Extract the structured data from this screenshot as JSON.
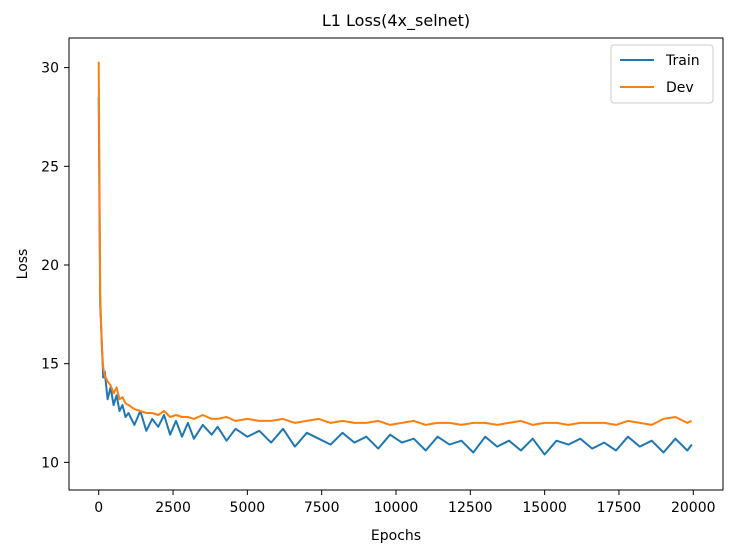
{
  "chart_data": {
    "type": "line",
    "title": "L1 Loss(4x_selnet)",
    "xlabel": "Epochs",
    "ylabel": "Loss",
    "xlim": [
      -1000,
      21000
    ],
    "ylim": [
      8.6,
      31.5
    ],
    "xticks": [
      0,
      2500,
      5000,
      7500,
      10000,
      12500,
      15000,
      17500,
      20000
    ],
    "yticks": [
      10,
      15,
      20,
      25,
      30
    ],
    "grid": false,
    "legend_position": "top-right",
    "series": [
      {
        "name": "Train",
        "color": "#1f77b4",
        "x": [
          0,
          50,
          100,
          150,
          200,
          300,
          400,
          500,
          600,
          700,
          800,
          900,
          1000,
          1200,
          1400,
          1600,
          1800,
          2000,
          2200,
          2400,
          2600,
          2800,
          3000,
          3200,
          3500,
          3800,
          4000,
          4300,
          4600,
          5000,
          5400,
          5800,
          6200,
          6600,
          7000,
          7400,
          7800,
          8200,
          8600,
          9000,
          9400,
          9800,
          10200,
          10600,
          11000,
          11400,
          11800,
          12200,
          12600,
          13000,
          13400,
          13800,
          14200,
          14600,
          15000,
          15400,
          15800,
          16200,
          16600,
          17000,
          17400,
          17800,
          18200,
          18600,
          19000,
          19400,
          19800,
          19950
        ],
        "y": [
          28.5,
          18.0,
          16.2,
          14.3,
          14.6,
          13.2,
          13.8,
          12.9,
          13.4,
          12.6,
          12.9,
          12.3,
          12.5,
          11.9,
          12.6,
          11.6,
          12.2,
          11.8,
          12.4,
          11.4,
          12.1,
          11.3,
          12.0,
          11.2,
          11.9,
          11.4,
          11.8,
          11.1,
          11.7,
          11.3,
          11.6,
          11.0,
          11.7,
          10.8,
          11.5,
          11.2,
          10.9,
          11.5,
          11.0,
          11.3,
          10.7,
          11.4,
          11.0,
          11.2,
          10.6,
          11.3,
          10.9,
          11.1,
          10.5,
          11.3,
          10.8,
          11.1,
          10.6,
          11.2,
          10.4,
          11.1,
          10.9,
          11.2,
          10.7,
          11.0,
          10.6,
          11.3,
          10.8,
          11.1,
          10.5,
          11.2,
          10.6,
          10.9
        ]
      },
      {
        "name": "Dev",
        "color": "#ff7f0e",
        "x": [
          0,
          50,
          100,
          150,
          200,
          300,
          400,
          500,
          600,
          700,
          800,
          900,
          1000,
          1200,
          1400,
          1600,
          1800,
          2000,
          2200,
          2400,
          2600,
          2800,
          3000,
          3200,
          3500,
          3800,
          4000,
          4300,
          4600,
          5000,
          5400,
          5800,
          6200,
          6600,
          7000,
          7400,
          7800,
          8200,
          8600,
          9000,
          9400,
          9800,
          10200,
          10600,
          11000,
          11400,
          11800,
          12200,
          12600,
          13000,
          13400,
          13800,
          14200,
          14600,
          15000,
          15400,
          15800,
          16200,
          16600,
          17000,
          17400,
          17800,
          18200,
          18600,
          19000,
          19400,
          19800,
          19950
        ],
        "y": [
          30.3,
          18.5,
          16.0,
          14.8,
          14.4,
          14.1,
          13.9,
          13.5,
          13.8,
          13.2,
          13.3,
          13.0,
          12.9,
          12.7,
          12.6,
          12.5,
          12.5,
          12.4,
          12.6,
          12.3,
          12.4,
          12.3,
          12.3,
          12.2,
          12.4,
          12.2,
          12.2,
          12.3,
          12.1,
          12.2,
          12.1,
          12.1,
          12.2,
          12.0,
          12.1,
          12.2,
          12.0,
          12.1,
          12.0,
          12.0,
          12.1,
          11.9,
          12.0,
          12.1,
          11.9,
          12.0,
          12.0,
          11.9,
          12.0,
          12.0,
          11.9,
          12.0,
          12.1,
          11.9,
          12.0,
          12.0,
          11.9,
          12.0,
          12.0,
          12.0,
          11.9,
          12.1,
          12.0,
          11.9,
          12.2,
          12.3,
          12.0,
          12.1
        ]
      }
    ]
  }
}
